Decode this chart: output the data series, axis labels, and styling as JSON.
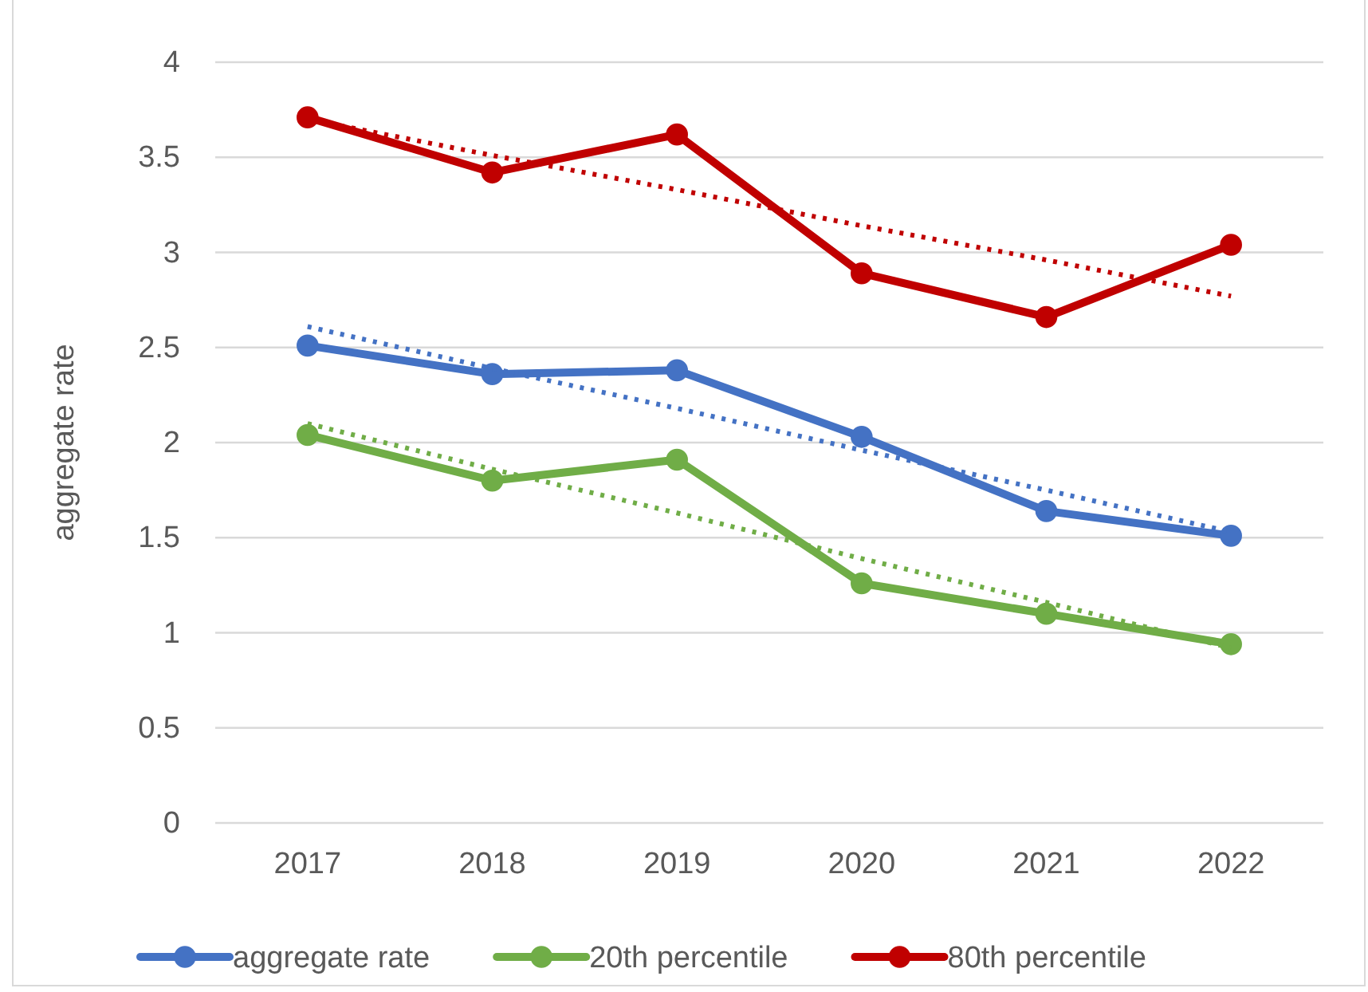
{
  "chart_data": {
    "type": "line",
    "ylabel": "aggregate rate",
    "categories": [
      "2017",
      "2018",
      "2019",
      "2020",
      "2021",
      "2022"
    ],
    "ylim": [
      0,
      4
    ],
    "yticks": [
      0,
      0.5,
      1,
      1.5,
      2,
      2.5,
      3,
      3.5,
      4
    ],
    "grid": "y",
    "legend": "bottom",
    "marker": "circle",
    "line_style": "solid",
    "series": [
      {
        "name": "aggregate rate",
        "color": "#4472c4",
        "values": [
          2.51,
          2.36,
          2.38,
          2.03,
          1.64,
          1.51
        ]
      },
      {
        "name": "20th percentile",
        "color": "#70ad47",
        "values": [
          2.04,
          1.8,
          1.91,
          1.26,
          1.1,
          0.94
        ]
      },
      {
        "name": "80th percentile",
        "color": "#c00000",
        "values": [
          3.71,
          3.42,
          3.62,
          2.89,
          2.66,
          3.04
        ]
      },
      {
        "color": "#4472c4",
        "values": [
          2.61,
          2.39,
          2.18,
          1.96,
          1.75,
          1.53
        ],
        "line_style": "dotted",
        "marker": "none"
      },
      {
        "color": "#70ad47",
        "values": [
          2.1,
          1.86,
          1.63,
          1.39,
          1.16,
          0.92
        ],
        "line_style": "dotted",
        "marker": "none"
      },
      {
        "color": "#c00000",
        "values": [
          3.7,
          3.51,
          3.33,
          3.14,
          2.96,
          2.77
        ],
        "line_style": "dotted",
        "marker": "none"
      }
    ]
  }
}
